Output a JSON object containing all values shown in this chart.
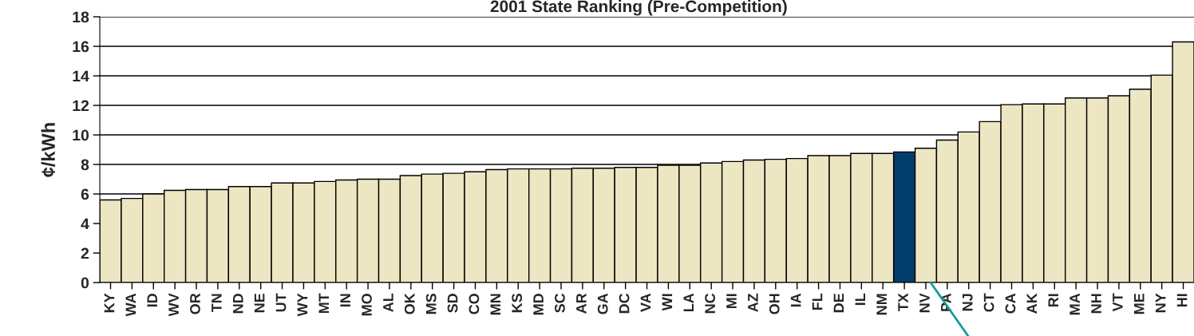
{
  "chart_data": {
    "type": "bar",
    "title": "2001 State Ranking (Pre-Competition)",
    "ylabel": "¢/kWh",
    "categories": [
      "KY",
      "WA",
      "ID",
      "WV",
      "OR",
      "TN",
      "ND",
      "NE",
      "UT",
      "WY",
      "MT",
      "IN",
      "MO",
      "AL",
      "OK",
      "MS",
      "SD",
      "CO",
      "MN",
      "KS",
      "MD",
      "SC",
      "AR",
      "GA",
      "DC",
      "VA",
      "WI",
      "LA",
      "NC",
      "MI",
      "AZ",
      "OH",
      "IA",
      "FL",
      "DE",
      "IL",
      "NM",
      "TX",
      "NV",
      "PA",
      "NJ",
      "CT",
      "CA",
      "AK",
      "RI",
      "MA",
      "NH",
      "VT",
      "ME",
      "NY",
      "HI"
    ],
    "values": [
      5.6,
      5.7,
      6.0,
      6.25,
      6.3,
      6.3,
      6.5,
      6.5,
      6.75,
      6.75,
      6.85,
      6.95,
      7.0,
      7.0,
      7.25,
      7.35,
      7.4,
      7.5,
      7.65,
      7.7,
      7.7,
      7.7,
      7.75,
      7.75,
      7.8,
      7.8,
      7.95,
      7.95,
      8.1,
      8.2,
      8.3,
      8.35,
      8.4,
      8.6,
      8.6,
      8.75,
      8.75,
      8.85,
      9.1,
      9.65,
      10.2,
      10.9,
      12.05,
      12.1,
      12.1,
      12.5,
      12.5,
      12.65,
      13.1,
      14.05,
      16.3
    ],
    "colors": [
      "#ede6c2",
      "#ede6c2",
      "#ede6c2",
      "#ede6c2",
      "#ede6c2",
      "#ede6c2",
      "#ede6c2",
      "#ede6c2",
      "#ede6c2",
      "#ede6c2",
      "#ede6c2",
      "#ede6c2",
      "#ede6c2",
      "#ede6c2",
      "#ede6c2",
      "#ede6c2",
      "#ede6c2",
      "#ede6c2",
      "#ede6c2",
      "#ede6c2",
      "#ede6c2",
      "#ede6c2",
      "#ede6c2",
      "#ede6c2",
      "#ede6c2",
      "#ede6c2",
      "#ede6c2",
      "#ede6c2",
      "#ede6c2",
      "#ede6c2",
      "#ede6c2",
      "#ede6c2",
      "#ede6c2",
      "#ede6c2",
      "#ede6c2",
      "#ede6c2",
      "#ede6c2",
      "#023e6b",
      "#ede6c2",
      "#ede6c2",
      "#ede6c2",
      "#ede6c2",
      "#ede6c2",
      "#ede6c2",
      "#ede6c2",
      "#ede6c2",
      "#ede6c2",
      "#ede6c2",
      "#ede6c2",
      "#ede6c2",
      "#ede6c2"
    ],
    "ylim": [
      0,
      18
    ],
    "yticks": [
      0,
      2,
      4,
      6,
      8,
      10,
      12,
      14,
      16,
      18
    ],
    "grid": "y"
  }
}
